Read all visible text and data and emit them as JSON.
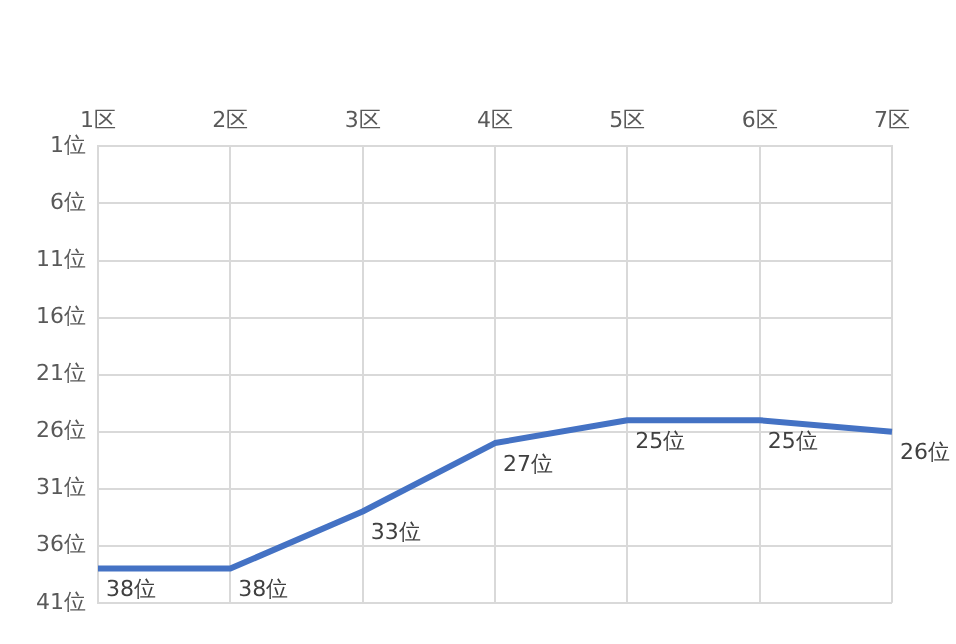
{
  "chart_data": {
    "type": "line",
    "categories": [
      "1区",
      "2区",
      "3区",
      "4区",
      "5区",
      "6区",
      "7区"
    ],
    "series": [
      {
        "color": "#4472c4",
        "values": [
          38,
          38,
          33,
          27,
          25,
          25,
          26
        ],
        "value_labels": [
          "38位",
          "38位",
          "33位",
          "27位",
          "25位",
          "25位",
          "26位"
        ]
      }
    ],
    "ylim": [
      41,
      1
    ],
    "yticks": [
      {
        "value": 1,
        "label": "1位"
      },
      {
        "value": 6,
        "label": "6位"
      },
      {
        "value": 11,
        "label": "11位"
      },
      {
        "value": 16,
        "label": "16位"
      },
      {
        "value": 21,
        "label": "21位"
      },
      {
        "value": 26,
        "label": "26位"
      },
      {
        "value": 31,
        "label": "31位"
      },
      {
        "value": 36,
        "label": "36位"
      },
      {
        "value": 41,
        "label": "41位"
      }
    ],
    "grid": true,
    "legend": false,
    "marker": "none",
    "line_style": "solid"
  }
}
